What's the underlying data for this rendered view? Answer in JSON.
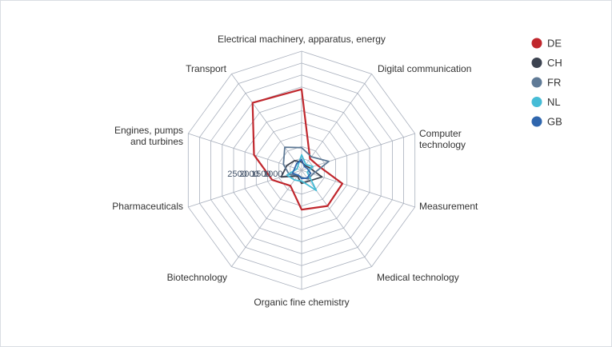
{
  "chart_data": {
    "type": "radar",
    "axes": [
      [
        "Electrical machinery, apparatus, energy"
      ],
      [
        "Digital communication"
      ],
      [
        "Computer",
        "technology"
      ],
      [
        "Measurement"
      ],
      [
        "Medical technology"
      ],
      [
        "Organic fine chemistry"
      ],
      [
        "Biotechnology"
      ],
      [
        "Pharmaceuticals"
      ],
      [
        "Engines, pumps",
        "and turbines"
      ],
      [
        "Transport"
      ]
    ],
    "radial_ticks": [
      "1000",
      "1500",
      "2000",
      "2500"
    ],
    "radial_tick_values": [
      1000,
      1500,
      2000,
      2500
    ],
    "radial_gridlines": [
      500,
      1000,
      1500,
      2000,
      2500,
      3000,
      3500,
      4000,
      4500,
      5000
    ],
    "radial_max": 5000,
    "legend_position": "top-right",
    "series": [
      {
        "name": "DE",
        "color": "#c0272d",
        "values": [
          3400,
          600,
          700,
          1800,
          1850,
          1650,
          800,
          1300,
          2100,
          3500
        ]
      },
      {
        "name": "CH",
        "color": "#3c4350",
        "values": [
          350,
          250,
          350,
          900,
          550,
          550,
          300,
          900,
          650,
          500
        ]
      },
      {
        "name": "FR",
        "color": "#5f7a96",
        "values": [
          950,
          700,
          1200,
          500,
          450,
          300,
          250,
          550,
          800,
          1200
        ]
      },
      {
        "name": "NL",
        "color": "#46bcd6",
        "values": [
          650,
          300,
          500,
          250,
          1050,
          450,
          500,
          650,
          200,
          250
        ]
      },
      {
        "name": "GB",
        "color": "#2f66ad",
        "values": [
          450,
          200,
          250,
          400,
          400,
          350,
          250,
          400,
          300,
          350
        ]
      }
    ]
  }
}
